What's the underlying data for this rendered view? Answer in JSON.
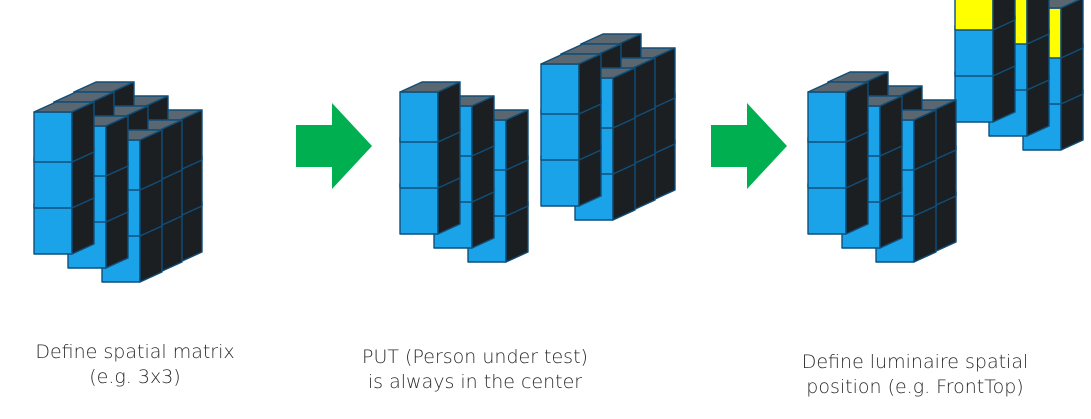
{
  "panels": [
    {
      "id": "spatial-matrix",
      "caption_lines": [
        "Define spatial matrix",
        "(e.g. 3x3)"
      ]
    },
    {
      "id": "put-center",
      "caption_lines": [
        "PUT (Person under test)",
        "is always in the center"
      ]
    },
    {
      "id": "luminaire-position",
      "caption_lines": [
        "Define luminaire spatial",
        "position (e.g. FrontTop)"
      ]
    }
  ],
  "colors": {
    "front": "#1aa3e8",
    "top": "#5b6770",
    "side": "#1c1f22",
    "edge": "#0f4f7a",
    "highlight_center": "#ff0000",
    "highlight_luminaire": "#ffff00",
    "arrow": "#00b050"
  },
  "icons": [
    "right-arrow-icon",
    "right-arrow-icon"
  ]
}
